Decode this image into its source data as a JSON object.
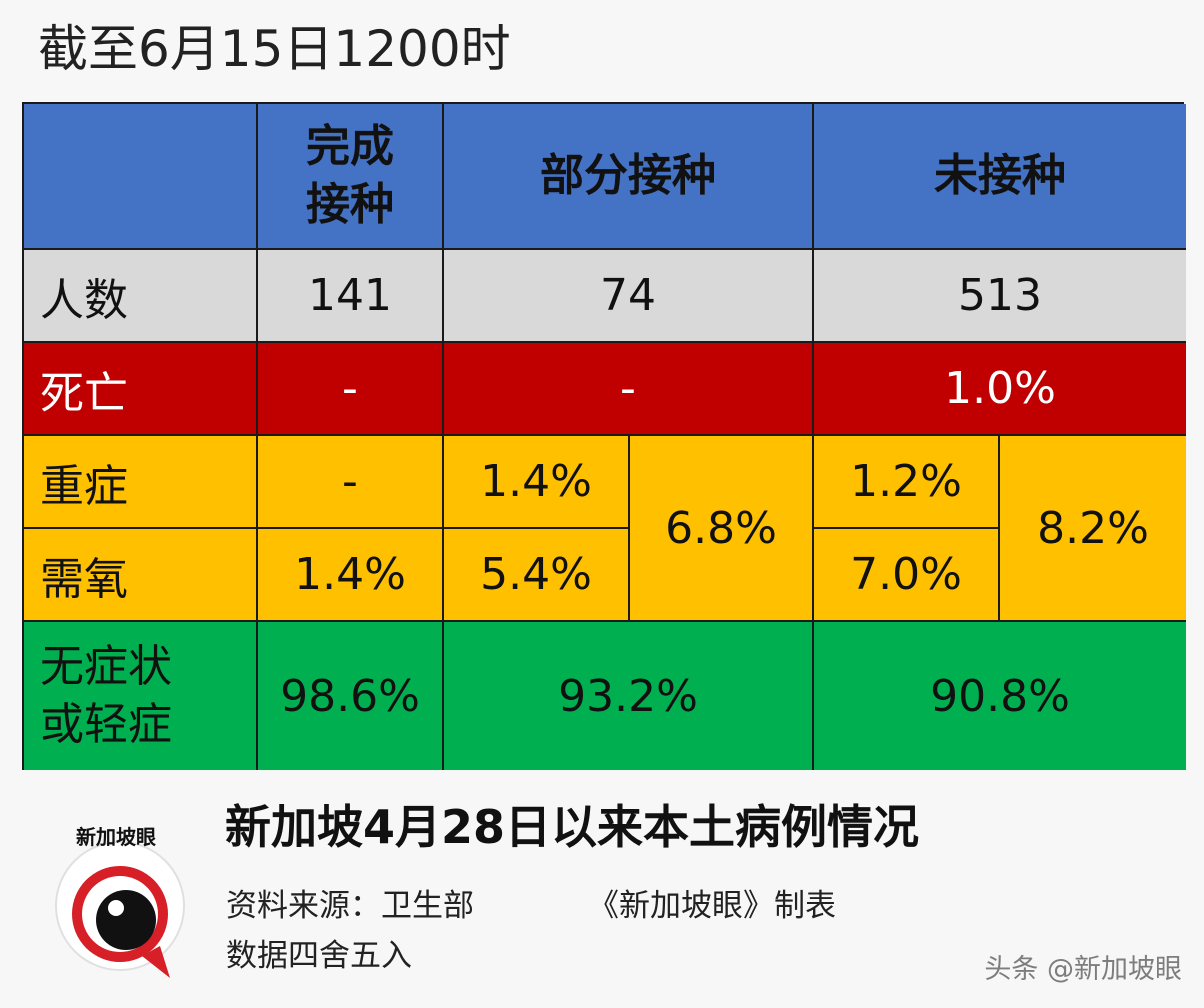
{
  "title": "截至6月15日1200时",
  "table": {
    "headers": [
      "",
      "完成\n接种",
      "部分接种",
      "未接种"
    ],
    "rows": {
      "people": {
        "label": "人数",
        "values": [
          "141",
          "74",
          "513"
        ]
      },
      "death": {
        "label": "死亡",
        "values": [
          "-",
          "-",
          "1.0%"
        ]
      },
      "severe": {
        "label": "重症",
        "full": "-",
        "partial": "1.4%",
        "partial_combined": "6.8%",
        "none": "1.2%",
        "none_combined": "8.2%"
      },
      "oxygen": {
        "label": "需氧",
        "full": "1.4%",
        "partial": "5.4%",
        "none": "7.0%"
      },
      "mild": {
        "label": "无症状\n或轻症",
        "values": [
          "98.6%",
          "93.2%",
          "90.8%"
        ]
      }
    }
  },
  "chart_data": {
    "type": "table",
    "title": "截至6月15日1200时",
    "columns": [
      "完成接种",
      "部分接种",
      "未接种"
    ],
    "rows": [
      {
        "label": "人数",
        "values": [
          141,
          74,
          513
        ]
      },
      {
        "label": "死亡",
        "values": [
          "-",
          "-",
          "1.0%"
        ]
      },
      {
        "label": "重症",
        "values": [
          "-",
          "1.4%",
          "1.2%"
        ]
      },
      {
        "label": "需氧",
        "values": [
          "1.4%",
          "5.4%",
          "7.0%"
        ]
      },
      {
        "label": "重症+需氧",
        "values": [
          null,
          "6.8%",
          "8.2%"
        ]
      },
      {
        "label": "无症状或轻症",
        "values": [
          "98.6%",
          "93.2%",
          "90.8%"
        ]
      }
    ],
    "colors": {
      "header": "#4472c4",
      "people": "#d9d9d9",
      "death": "#c00000",
      "severe_oxygen": "#ffc000",
      "mild": "#00b050"
    }
  },
  "footer": {
    "title": "新加坡4月28日以来本土病例情况",
    "source": "资料来源：卫生部",
    "made_by": "《新加坡眼》制表",
    "rounding": "数据四舍五入"
  },
  "logo": {
    "text": "新加坡眼",
    "icon": "eye-logo-icon"
  },
  "watermark": "头条 @新加坡眼"
}
